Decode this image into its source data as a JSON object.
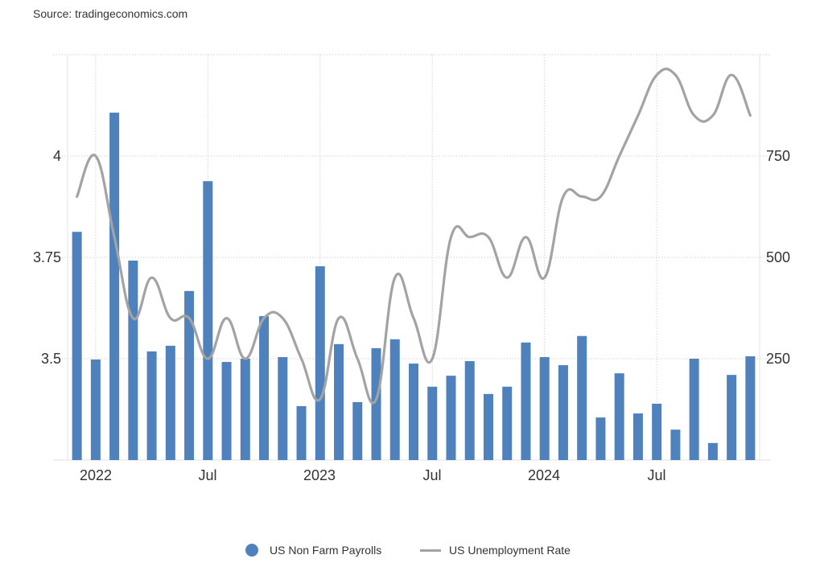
{
  "source": "Source: tradingeconomics.com",
  "colors": {
    "bar": "#4f81bd",
    "line": "#a3a3a3",
    "grid": "#d4d4d4",
    "axis_text": "#333333"
  },
  "legend": [
    {
      "label": "US Non Farm Payrolls",
      "marker": "circle"
    },
    {
      "label": "US Unemployment Rate",
      "marker": "line"
    }
  ],
  "chart_data": {
    "type": "bar+line",
    "title": "",
    "xlabel": "",
    "x_tick_labels": [
      "2022",
      "Jul",
      "2023",
      "Jul",
      "2024",
      "Jul"
    ],
    "left_axis": {
      "series": "US Unemployment Rate",
      "ticks": [
        "3.5",
        "3.75",
        "4"
      ],
      "ylim": [
        3.25,
        4.25
      ]
    },
    "right_axis": {
      "series": "US Non Farm Payrolls",
      "ticks": [
        "250",
        "500",
        "750"
      ],
      "ylim": [
        0,
        1000
      ]
    },
    "categories": [
      "Dec 2021",
      "Jan 2022",
      "Feb 2022",
      "Mar 2022",
      "Apr 2022",
      "May 2022",
      "Jun 2022",
      "Jul 2022",
      "Aug 2022",
      "Sep 2022",
      "Oct 2022",
      "Nov 2022",
      "Dec 2022",
      "Jan 2023",
      "Feb 2023",
      "Mar 2023",
      "Apr 2023",
      "May 2023",
      "Jun 2023",
      "Jul 2023",
      "Aug 2023",
      "Sep 2023",
      "Oct 2023",
      "Nov 2023",
      "Dec 2023",
      "Jan 2024",
      "Feb 2024",
      "Mar 2024",
      "Apr 2024",
      "May 2024",
      "Jun 2024",
      "Jul 2024",
      "Aug 2024",
      "Sep 2024",
      "Oct 2024",
      "Nov 2024",
      "Dec 2024"
    ],
    "series": [
      {
        "name": "US Non Farm Payrolls",
        "type": "bar",
        "axis": "right",
        "values": [
          563,
          248,
          857,
          492,
          268,
          282,
          417,
          688,
          242,
          250,
          355,
          254,
          133,
          478,
          286,
          143,
          276,
          298,
          238,
          181,
          208,
          244,
          163,
          181,
          290,
          254,
          234,
          306,
          105,
          214,
          115,
          139,
          75,
          250,
          42,
          210,
          256
        ]
      },
      {
        "name": "US Unemployment Rate",
        "type": "line",
        "axis": "left",
        "values": [
          3.9,
          4.0,
          3.8,
          3.6,
          3.7,
          3.6,
          3.6,
          3.5,
          3.6,
          3.5,
          3.6,
          3.6,
          3.5,
          3.4,
          3.6,
          3.5,
          3.4,
          3.7,
          3.6,
          3.5,
          3.8,
          3.8,
          3.8,
          3.7,
          3.8,
          3.7,
          3.9,
          3.9,
          3.9,
          4.0,
          4.1,
          4.2,
          4.2,
          4.1,
          4.1,
          4.2,
          4.1
        ]
      }
    ],
    "grid": true,
    "legend_position": "bottom"
  }
}
